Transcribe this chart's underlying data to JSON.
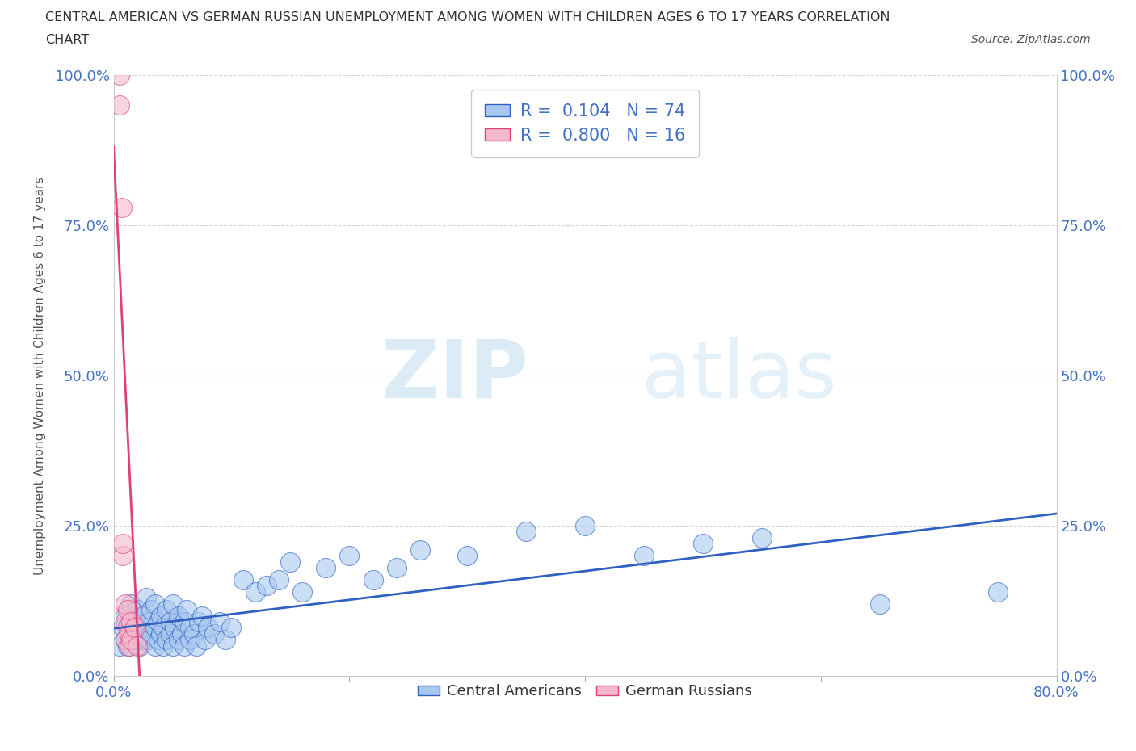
{
  "title_line1": "CENTRAL AMERICAN VS GERMAN RUSSIAN UNEMPLOYMENT AMONG WOMEN WITH CHILDREN AGES 6 TO 17 YEARS CORRELATION",
  "title_line2": "CHART",
  "source": "Source: ZipAtlas.com",
  "ylabel": "Unemployment Among Women with Children Ages 6 to 17 years",
  "xlim": [
    0.0,
    0.8
  ],
  "ylim": [
    0.0,
    1.0
  ],
  "ytick_labels": [
    "0.0%",
    "25.0%",
    "50.0%",
    "75.0%",
    "100.0%"
  ],
  "ytick_positions": [
    0.0,
    0.25,
    0.5,
    0.75,
    1.0
  ],
  "xtick_positions": [
    0.0,
    0.2,
    0.4,
    0.6,
    0.8
  ],
  "xtick_labels": [
    "0.0%",
    "",
    "",
    "",
    "80.0%"
  ],
  "R_blue": 0.104,
  "N_blue": 74,
  "R_pink": 0.8,
  "N_pink": 16,
  "blue_color": "#a8c8f0",
  "pink_color": "#f4b8cc",
  "blue_line_color": "#3060c0",
  "pink_line_color": "#e0407a",
  "legend_label_blue": "Central Americans",
  "legend_label_pink": "German Russians",
  "watermark_zip": "ZIP",
  "watermark_atlas": "atlas",
  "blue_points_x": [
    0.005,
    0.008,
    0.01,
    0.01,
    0.012,
    0.015,
    0.015,
    0.018,
    0.018,
    0.02,
    0.02,
    0.022,
    0.022,
    0.025,
    0.025,
    0.028,
    0.028,
    0.03,
    0.03,
    0.032,
    0.032,
    0.035,
    0.035,
    0.035,
    0.038,
    0.038,
    0.04,
    0.04,
    0.042,
    0.042,
    0.045,
    0.045,
    0.048,
    0.048,
    0.05,
    0.05,
    0.052,
    0.055,
    0.055,
    0.058,
    0.06,
    0.06,
    0.062,
    0.065,
    0.065,
    0.068,
    0.07,
    0.072,
    0.075,
    0.078,
    0.08,
    0.085,
    0.09,
    0.095,
    0.1,
    0.11,
    0.12,
    0.13,
    0.14,
    0.15,
    0.16,
    0.18,
    0.2,
    0.22,
    0.24,
    0.26,
    0.3,
    0.35,
    0.4,
    0.45,
    0.5,
    0.55,
    0.65,
    0.75
  ],
  "blue_points_y": [
    0.05,
    0.08,
    0.06,
    0.1,
    0.05,
    0.07,
    0.12,
    0.06,
    0.09,
    0.08,
    0.11,
    0.05,
    0.07,
    0.06,
    0.1,
    0.08,
    0.13,
    0.06,
    0.09,
    0.07,
    0.11,
    0.05,
    0.08,
    0.12,
    0.06,
    0.09,
    0.07,
    0.1,
    0.05,
    0.08,
    0.06,
    0.11,
    0.07,
    0.09,
    0.05,
    0.12,
    0.08,
    0.06,
    0.1,
    0.07,
    0.05,
    0.09,
    0.11,
    0.06,
    0.08,
    0.07,
    0.05,
    0.09,
    0.1,
    0.06,
    0.08,
    0.07,
    0.09,
    0.06,
    0.08,
    0.16,
    0.14,
    0.15,
    0.16,
    0.19,
    0.14,
    0.18,
    0.2,
    0.16,
    0.18,
    0.21,
    0.2,
    0.24,
    0.25,
    0.2,
    0.22,
    0.23,
    0.12,
    0.14
  ],
  "pink_points_x": [
    0.005,
    0.005,
    0.007,
    0.008,
    0.008,
    0.01,
    0.01,
    0.01,
    0.012,
    0.012,
    0.013,
    0.013,
    0.015,
    0.015,
    0.018,
    0.02
  ],
  "pink_points_y": [
    0.95,
    1.0,
    0.78,
    0.2,
    0.22,
    0.06,
    0.09,
    0.12,
    0.08,
    0.11,
    0.05,
    0.07,
    0.06,
    0.09,
    0.08,
    0.05
  ]
}
